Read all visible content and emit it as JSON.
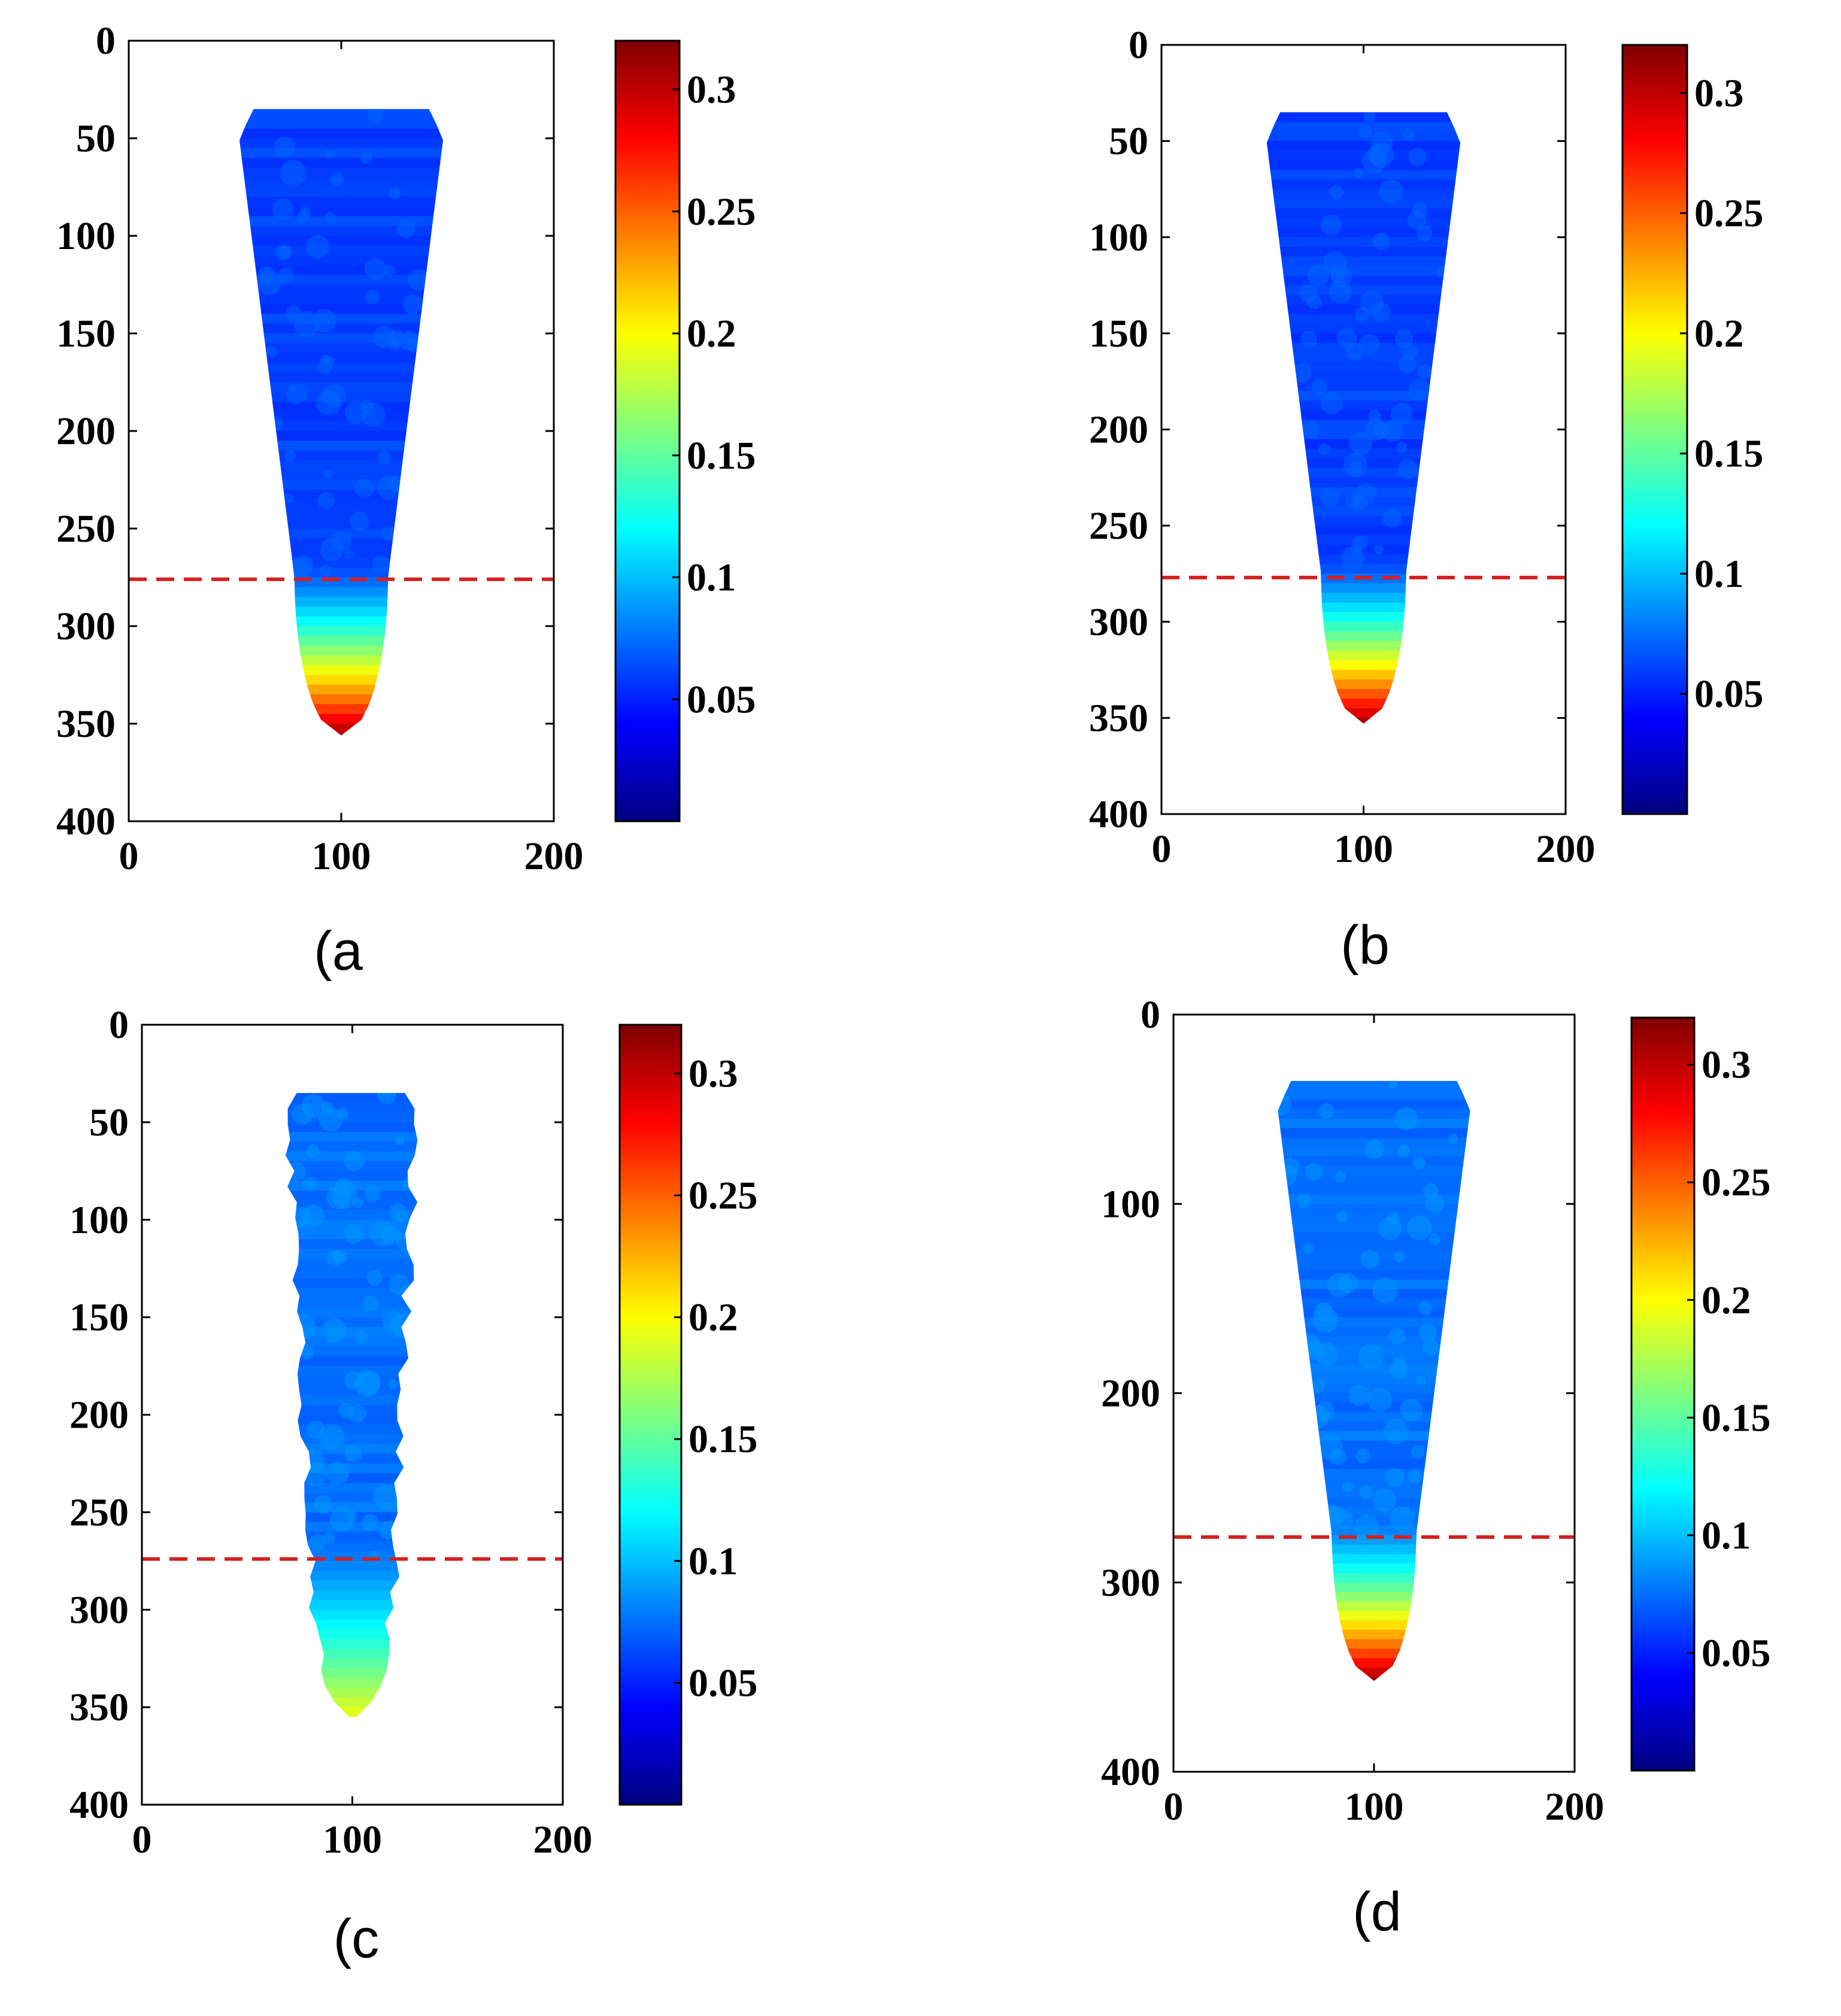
{
  "colormap": [
    "#00007f",
    "#0000ff",
    "#007fff",
    "#00ffff",
    "#7fff7f",
    "#ffff00",
    "#ff7f00",
    "#ff0000",
    "#7f0000"
  ],
  "colors": {
    "threshold_line": "#d42020",
    "frame": "#000000"
  },
  "chart_data": [
    {
      "type": "heatmap",
      "caption": "(a",
      "xlim": [
        0,
        200
      ],
      "ylim": [
        0,
        400
      ],
      "x_ticks": [
        "0",
        "100",
        "200"
      ],
      "y_ticks": [
        "0",
        "50",
        "100",
        "150",
        "200",
        "250",
        "300",
        "350",
        "400"
      ],
      "colorbar": {
        "min": 0,
        "max": 0.32,
        "ticks": [
          "0.05",
          "0.1",
          "0.15",
          "0.2",
          "0.25",
          "0.3"
        ]
      },
      "threshold_y": 276,
      "region": {
        "top_y": 35,
        "bottom_y": 356,
        "center_x": 100,
        "top_half_width": 48,
        "neck_y": 275,
        "neck_half_width": 22,
        "background_value": 0.06,
        "tip_value": 0.32,
        "texture": "smooth"
      }
    },
    {
      "type": "heatmap",
      "caption": "(b",
      "xlim": [
        0,
        200
      ],
      "ylim": [
        0,
        400
      ],
      "x_ticks": [
        "0",
        "100",
        "200"
      ],
      "y_ticks": [
        "0",
        "50",
        "100",
        "150",
        "200",
        "250",
        "300",
        "350",
        "400"
      ],
      "colorbar": {
        "min": 0,
        "max": 0.32,
        "ticks": [
          "0.05",
          "0.1",
          "0.15",
          "0.2",
          "0.25",
          "0.3"
        ]
      },
      "threshold_y": 277,
      "region": {
        "top_y": 35,
        "bottom_y": 353,
        "center_x": 100,
        "top_half_width": 48,
        "neck_y": 275,
        "neck_half_width": 21,
        "background_value": 0.06,
        "tip_value": 0.32,
        "texture": "smooth"
      }
    },
    {
      "type": "heatmap",
      "caption": "(c",
      "xlim": [
        0,
        200
      ],
      "ylim": [
        0,
        400
      ],
      "x_ticks": [
        "0",
        "100",
        "200"
      ],
      "y_ticks": [
        "0",
        "50",
        "100",
        "150",
        "200",
        "250",
        "300",
        "350",
        "400"
      ],
      "colorbar": {
        "min": 0,
        "max": 0.32,
        "ticks": [
          "0.05",
          "0.1",
          "0.15",
          "0.2",
          "0.25",
          "0.3"
        ]
      },
      "threshold_y": 274,
      "region": {
        "top_y": 35,
        "bottom_y": 355,
        "center_x": 100,
        "top_half_width": 30,
        "neck_y": 275,
        "neck_half_width": 20,
        "background_value": 0.075,
        "tip_value": 0.2,
        "texture": "ragged"
      }
    },
    {
      "type": "heatmap",
      "caption": "(d",
      "xlim": [
        0,
        200
      ],
      "ylim": [
        0,
        400
      ],
      "x_ticks": [
        "0",
        "100",
        "200"
      ],
      "y_ticks": [
        "0",
        "100",
        "200",
        "300",
        "400"
      ],
      "colorbar": {
        "min": 0,
        "max": 0.32,
        "ticks": [
          "0.05",
          "0.1",
          "0.15",
          "0.2",
          "0.25",
          "0.3"
        ]
      },
      "threshold_y": 276,
      "region": {
        "top_y": 35,
        "bottom_y": 352,
        "center_x": 100,
        "top_half_width": 48,
        "neck_y": 275,
        "neck_half_width": 21,
        "background_value": 0.075,
        "tip_value": 0.32,
        "texture": "smooth"
      }
    }
  ]
}
